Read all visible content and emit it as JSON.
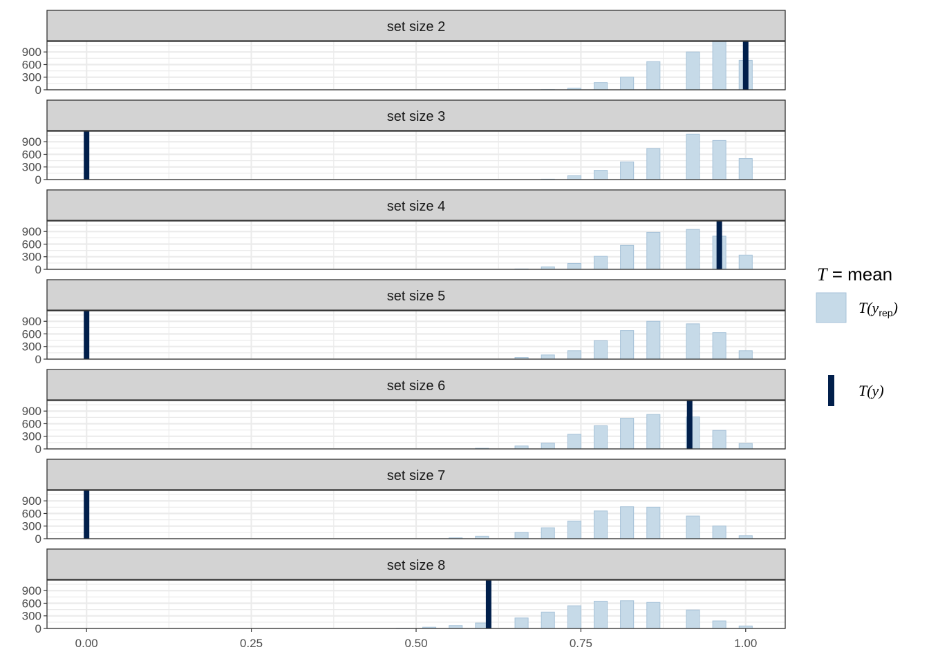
{
  "chart_data": {
    "type": "bar",
    "statistic": "mean",
    "facet_label_prefix": "set size",
    "x_ticks": [
      "0.00",
      "0.25",
      "0.50",
      "0.75",
      "1.00"
    ],
    "x_tick_values": [
      0,
      0.25,
      0.5,
      0.75,
      1.0
    ],
    "y_ticks": [
      "0",
      "300",
      "600",
      "900"
    ],
    "y_tick_values": [
      0,
      300,
      600,
      900
    ],
    "xlim": [
      -0.06,
      1.06
    ],
    "ylim": [
      0,
      1150
    ],
    "bin_width": 0.02,
    "colors": {
      "rep_fill": "#c6dae8",
      "rep_stroke": "#a6c2d8",
      "observed": "#011f4b",
      "strip_bg": "#d3d3d3",
      "grid": "#ebebeb",
      "panel_border": "#333333"
    },
    "legend": {
      "title_symbol": "T",
      "title_rest": " = mean",
      "rep_label_main": "T(y",
      "rep_label_sub": "rep",
      "rep_label_close": ")",
      "obs_label": "T(y)"
    },
    "panels": [
      {
        "label": "set size 2",
        "observed": 1.0,
        "bins": [
          {
            "x": 0.7,
            "y": 5
          },
          {
            "x": 0.74,
            "y": 40
          },
          {
            "x": 0.78,
            "y": 170
          },
          {
            "x": 0.82,
            "y": 300
          },
          {
            "x": 0.86,
            "y": 670
          },
          {
            "x": 0.92,
            "y": 900
          },
          {
            "x": 0.96,
            "y": 1170
          },
          {
            "x": 1.0,
            "y": 700
          }
        ]
      },
      {
        "label": "set size 3",
        "observed": 0.0,
        "bins": [
          {
            "x": 0.7,
            "y": 10
          },
          {
            "x": 0.74,
            "y": 90
          },
          {
            "x": 0.78,
            "y": 220
          },
          {
            "x": 0.82,
            "y": 420
          },
          {
            "x": 0.86,
            "y": 740
          },
          {
            "x": 0.92,
            "y": 1080
          },
          {
            "x": 0.96,
            "y": 930
          },
          {
            "x": 1.0,
            "y": 500
          }
        ]
      },
      {
        "label": "set size 4",
        "observed": 0.96,
        "bins": [
          {
            "x": 0.66,
            "y": 10
          },
          {
            "x": 0.7,
            "y": 60
          },
          {
            "x": 0.74,
            "y": 140
          },
          {
            "x": 0.78,
            "y": 310
          },
          {
            "x": 0.82,
            "y": 570
          },
          {
            "x": 0.86,
            "y": 880
          },
          {
            "x": 0.92,
            "y": 950
          },
          {
            "x": 0.96,
            "y": 790
          },
          {
            "x": 1.0,
            "y": 340
          }
        ]
      },
      {
        "label": "set size 5",
        "observed": 0.0,
        "bins": [
          {
            "x": 0.66,
            "y": 40
          },
          {
            "x": 0.7,
            "y": 100
          },
          {
            "x": 0.74,
            "y": 200
          },
          {
            "x": 0.78,
            "y": 440
          },
          {
            "x": 0.82,
            "y": 680
          },
          {
            "x": 0.86,
            "y": 900
          },
          {
            "x": 0.92,
            "y": 840
          },
          {
            "x": 0.96,
            "y": 630
          },
          {
            "x": 1.0,
            "y": 200
          }
        ]
      },
      {
        "label": "set size 6",
        "observed": 0.915,
        "bins": [
          {
            "x": 0.6,
            "y": 15
          },
          {
            "x": 0.66,
            "y": 70
          },
          {
            "x": 0.7,
            "y": 140
          },
          {
            "x": 0.74,
            "y": 350
          },
          {
            "x": 0.78,
            "y": 550
          },
          {
            "x": 0.82,
            "y": 730
          },
          {
            "x": 0.86,
            "y": 820
          },
          {
            "x": 0.92,
            "y": 760
          },
          {
            "x": 0.96,
            "y": 440
          },
          {
            "x": 1.0,
            "y": 130
          }
        ]
      },
      {
        "label": "set size 7",
        "observed": 0.0,
        "bins": [
          {
            "x": 0.56,
            "y": 20
          },
          {
            "x": 0.6,
            "y": 60
          },
          {
            "x": 0.66,
            "y": 150
          },
          {
            "x": 0.7,
            "y": 260
          },
          {
            "x": 0.74,
            "y": 420
          },
          {
            "x": 0.78,
            "y": 660
          },
          {
            "x": 0.82,
            "y": 760
          },
          {
            "x": 0.86,
            "y": 750
          },
          {
            "x": 0.92,
            "y": 540
          },
          {
            "x": 0.96,
            "y": 300
          },
          {
            "x": 1.0,
            "y": 70
          }
        ]
      },
      {
        "label": "set size 8",
        "observed": 0.61,
        "bins": [
          {
            "x": 0.48,
            "y": 5
          },
          {
            "x": 0.52,
            "y": 30
          },
          {
            "x": 0.56,
            "y": 70
          },
          {
            "x": 0.6,
            "y": 130
          },
          {
            "x": 0.66,
            "y": 250
          },
          {
            "x": 0.7,
            "y": 390
          },
          {
            "x": 0.74,
            "y": 540
          },
          {
            "x": 0.78,
            "y": 650
          },
          {
            "x": 0.82,
            "y": 660
          },
          {
            "x": 0.86,
            "y": 620
          },
          {
            "x": 0.92,
            "y": 440
          },
          {
            "x": 0.96,
            "y": 180
          },
          {
            "x": 1.0,
            "y": 60
          }
        ]
      }
    ]
  }
}
